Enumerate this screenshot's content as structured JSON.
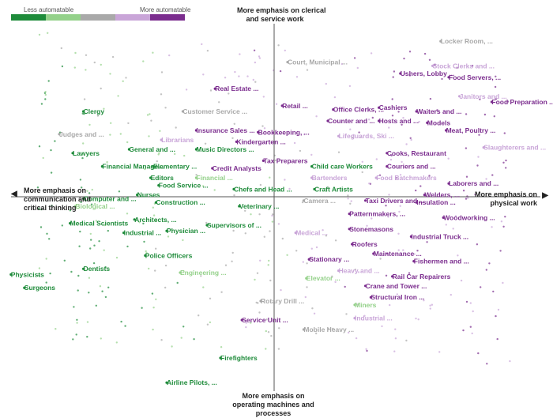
{
  "legend": {
    "left_label": "Less automatable",
    "right_label": "More automatable",
    "colors": [
      "#1e8b3a",
      "#94d18a",
      "#a9a9a9",
      "#c9a5d8",
      "#7b2d8e"
    ]
  },
  "axes": {
    "top_label_line1": "More emphasis on clerical",
    "top_label_line2": "and service work",
    "bottom_label_line1": "More emphasis on",
    "bottom_label_line2": "operating machines and",
    "bottom_label_line3": "processes",
    "left_label_line1": "More emphasis on",
    "left_label_line2": "communication and",
    "left_label_line3": "critical thinking",
    "right_label_line1": "More emphasis on",
    "right_label_line2": "physical work",
    "left_arrow": "◀",
    "right_arrow": "▶"
  },
  "chart_data": {
    "type": "scatter",
    "x_axis": {
      "negative": "More emphasis on communication and critical thinking",
      "positive": "More emphasis on physical work"
    },
    "y_axis": {
      "positive": "More emphasis on clerical and service work",
      "negative": "More emphasis on operating machines and processes"
    },
    "xlim": [
      -100,
      100
    ],
    "ylim": [
      -100,
      100
    ],
    "color_scale": [
      "Less automatable",
      "More automatable"
    ],
    "labeled_points": [
      {
        "label": "Locker Room, ...",
        "x": 62,
        "y": 82,
        "automation": 3
      },
      {
        "label": "Court, Municipal ...",
        "x": 5,
        "y": 71,
        "automation": 3
      },
      {
        "label": "Stock Clerks and ...",
        "x": 59,
        "y": 69,
        "automation": 4
      },
      {
        "label": "Ushers, Lobby ...",
        "x": 47,
        "y": 65,
        "automation": 5
      },
      {
        "label": "Food Servers, ...",
        "x": 65,
        "y": 63,
        "automation": 5
      },
      {
        "label": "Real Estate ...",
        "x": -22,
        "y": 57,
        "automation": 5
      },
      {
        "label": "Janitors and ...",
        "x": 69,
        "y": 53,
        "automation": 4
      },
      {
        "label": "Food Preparation ...",
        "x": 81,
        "y": 50,
        "automation": 5
      },
      {
        "label": "Retail ...",
        "x": 3,
        "y": 48,
        "automation": 5
      },
      {
        "label": "Office Clerks, ...",
        "x": 22,
        "y": 46,
        "automation": 5
      },
      {
        "label": "Cashiers",
        "x": 39,
        "y": 47,
        "automation": 5
      },
      {
        "label": "Waiters and ...",
        "x": 53,
        "y": 45,
        "automation": 5
      },
      {
        "label": "Clergy",
        "x": -71,
        "y": 45,
        "automation": 1
      },
      {
        "label": "Customer Service ...",
        "x": -34,
        "y": 45,
        "automation": 3
      },
      {
        "label": "Counter and ...",
        "x": 20,
        "y": 40,
        "automation": 5
      },
      {
        "label": "Hosts and ...",
        "x": 39,
        "y": 40,
        "automation": 5
      },
      {
        "label": "Models",
        "x": 57,
        "y": 39,
        "automation": 5
      },
      {
        "label": "Meat, Poultry ...",
        "x": 64,
        "y": 35,
        "automation": 5
      },
      {
        "label": "Insurance Sales ...",
        "x": -29,
        "y": 35,
        "automation": 5
      },
      {
        "label": "Bookkeeping, ...",
        "x": -6,
        "y": 34,
        "automation": 5
      },
      {
        "label": "Judges and ...",
        "x": -80,
        "y": 33,
        "automation": 3
      },
      {
        "label": "Librarians",
        "x": -42,
        "y": 30,
        "automation": 4
      },
      {
        "label": "Lifeguards, Ski ...",
        "x": 24,
        "y": 32,
        "automation": 4
      },
      {
        "label": "Kindergarten ...",
        "x": -14,
        "y": 29,
        "automation": 5
      },
      {
        "label": "General and ...",
        "x": -54,
        "y": 25,
        "automation": 1
      },
      {
        "label": "Music Directors ...",
        "x": -29,
        "y": 25,
        "automation": 1
      },
      {
        "label": "Slaughterers and ...",
        "x": 78,
        "y": 26,
        "automation": 4
      },
      {
        "label": "Lawyers",
        "x": -75,
        "y": 23,
        "automation": 1
      },
      {
        "label": "Cooks, Restaurant",
        "x": 42,
        "y": 23,
        "automation": 5
      },
      {
        "label": "Tax Preparers",
        "x": -4,
        "y": 19,
        "automation": 5
      },
      {
        "label": "Financial Manage...",
        "x": -64,
        "y": 16,
        "automation": 1
      },
      {
        "label": "Elementary ...",
        "x": -45,
        "y": 16,
        "automation": 1
      },
      {
        "label": "Credit Analysts",
        "x": -23,
        "y": 15,
        "automation": 5
      },
      {
        "label": "Child care Workers",
        "x": 14,
        "y": 16,
        "automation": 1
      },
      {
        "label": "Couriers and ...",
        "x": 42,
        "y": 16,
        "automation": 5
      },
      {
        "label": "Editors",
        "x": -46,
        "y": 10,
        "automation": 1
      },
      {
        "label": "Financial ...",
        "x": -29,
        "y": 10,
        "automation": 2
      },
      {
        "label": "Bartenders",
        "x": 14,
        "y": 10,
        "automation": 4
      },
      {
        "label": "Food Batchmakers",
        "x": 38,
        "y": 10,
        "automation": 4
      },
      {
        "label": "Food Service ...",
        "x": -43,
        "y": 6,
        "automation": 1
      },
      {
        "label": "Chefs and Head ...",
        "x": -15,
        "y": 4,
        "automation": 1
      },
      {
        "label": "Craft Artists",
        "x": 15,
        "y": 4,
        "automation": 1
      },
      {
        "label": "Laborers and ...",
        "x": 65,
        "y": 7,
        "automation": 5
      },
      {
        "label": "Computer and ...",
        "x": -71,
        "y": -1,
        "automation": 1
      },
      {
        "label": "Nurses",
        "x": -51,
        "y": 1,
        "automation": 1
      },
      {
        "label": "Welders, ...",
        "x": 56,
        "y": 1,
        "automation": 5
      },
      {
        "label": "Construction ...",
        "x": -44,
        "y": -3,
        "automation": 1
      },
      {
        "label": "Camera ...",
        "x": 11,
        "y": -2,
        "automation": 3
      },
      {
        "label": "Taxi Drivers and ...",
        "x": 34,
        "y": -2,
        "automation": 5
      },
      {
        "label": "Insulation ...",
        "x": 53,
        "y": -3,
        "automation": 5
      },
      {
        "label": "Biological ...",
        "x": -74,
        "y": -5,
        "automation": 2
      },
      {
        "label": "Veterinary ...",
        "x": -13,
        "y": -5,
        "automation": 1
      },
      {
        "label": "Patternmakers, ...",
        "x": 28,
        "y": -9,
        "automation": 5
      },
      {
        "label": "Medical Scientists",
        "x": -76,
        "y": -14,
        "automation": 1
      },
      {
        "label": "Architects, ...",
        "x": -52,
        "y": -12,
        "automation": 1
      },
      {
        "label": "Woodworking ...",
        "x": 63,
        "y": -11,
        "automation": 5
      },
      {
        "label": "Supervisors of ...",
        "x": -25,
        "y": -15,
        "automation": 1
      },
      {
        "label": "Industrial ...",
        "x": -56,
        "y": -19,
        "automation": 1
      },
      {
        "label": "Physician ...",
        "x": -40,
        "y": -18,
        "automation": 1
      },
      {
        "label": "Medical ...",
        "x": 8,
        "y": -19,
        "automation": 4
      },
      {
        "label": "Stonemasons",
        "x": 28,
        "y": -17,
        "automation": 5
      },
      {
        "label": "Industrial Truck ...",
        "x": 51,
        "y": -21,
        "automation": 5
      },
      {
        "label": "Roofers",
        "x": 29,
        "y": -25,
        "automation": 5
      },
      {
        "label": "Police Officers",
        "x": -48,
        "y": -31,
        "automation": 1
      },
      {
        "label": "Stationary ...",
        "x": 13,
        "y": -33,
        "automation": 5
      },
      {
        "label": "Maintenance ...",
        "x": 37,
        "y": -30,
        "automation": 5
      },
      {
        "label": "Fishermen and ...",
        "x": 52,
        "y": -34,
        "automation": 5
      },
      {
        "label": "Dentists",
        "x": -71,
        "y": -38,
        "automation": 1
      },
      {
        "label": "Heavy and ...",
        "x": 24,
        "y": -39,
        "automation": 4
      },
      {
        "label": "Physicists",
        "x": -98,
        "y": -41,
        "automation": 1
      },
      {
        "label": "Engineering ...",
        "x": -35,
        "y": -40,
        "automation": 2
      },
      {
        "label": "Elevator ...",
        "x": 12,
        "y": -43,
        "automation": 2
      },
      {
        "label": "Rail Car Repairers",
        "x": 44,
        "y": -42,
        "automation": 5
      },
      {
        "label": "Crane and Tower ...",
        "x": 34,
        "y": -47,
        "automation": 5
      },
      {
        "label": "Surgeons",
        "x": -93,
        "y": -48,
        "automation": 1
      },
      {
        "label": "Structural Iron ...",
        "x": 36,
        "y": -53,
        "automation": 5
      },
      {
        "label": "Rotary Drill ...",
        "x": -5,
        "y": -55,
        "automation": 3
      },
      {
        "label": "Miners",
        "x": 30,
        "y": -57,
        "automation": 2
      },
      {
        "label": "Industrial ...",
        "x": 30,
        "y": -64,
        "automation": 4
      },
      {
        "label": "Service Unit ...",
        "x": -12,
        "y": -65,
        "automation": 5
      },
      {
        "label": "Mobile Heavy ...",
        "x": 11,
        "y": -70,
        "automation": 3
      },
      {
        "label": "Firefighters",
        "x": -20,
        "y": -85,
        "automation": 1
      },
      {
        "label": "Airline Pilots, ...",
        "x": -40,
        "y": -98,
        "automation": 1
      }
    ]
  }
}
